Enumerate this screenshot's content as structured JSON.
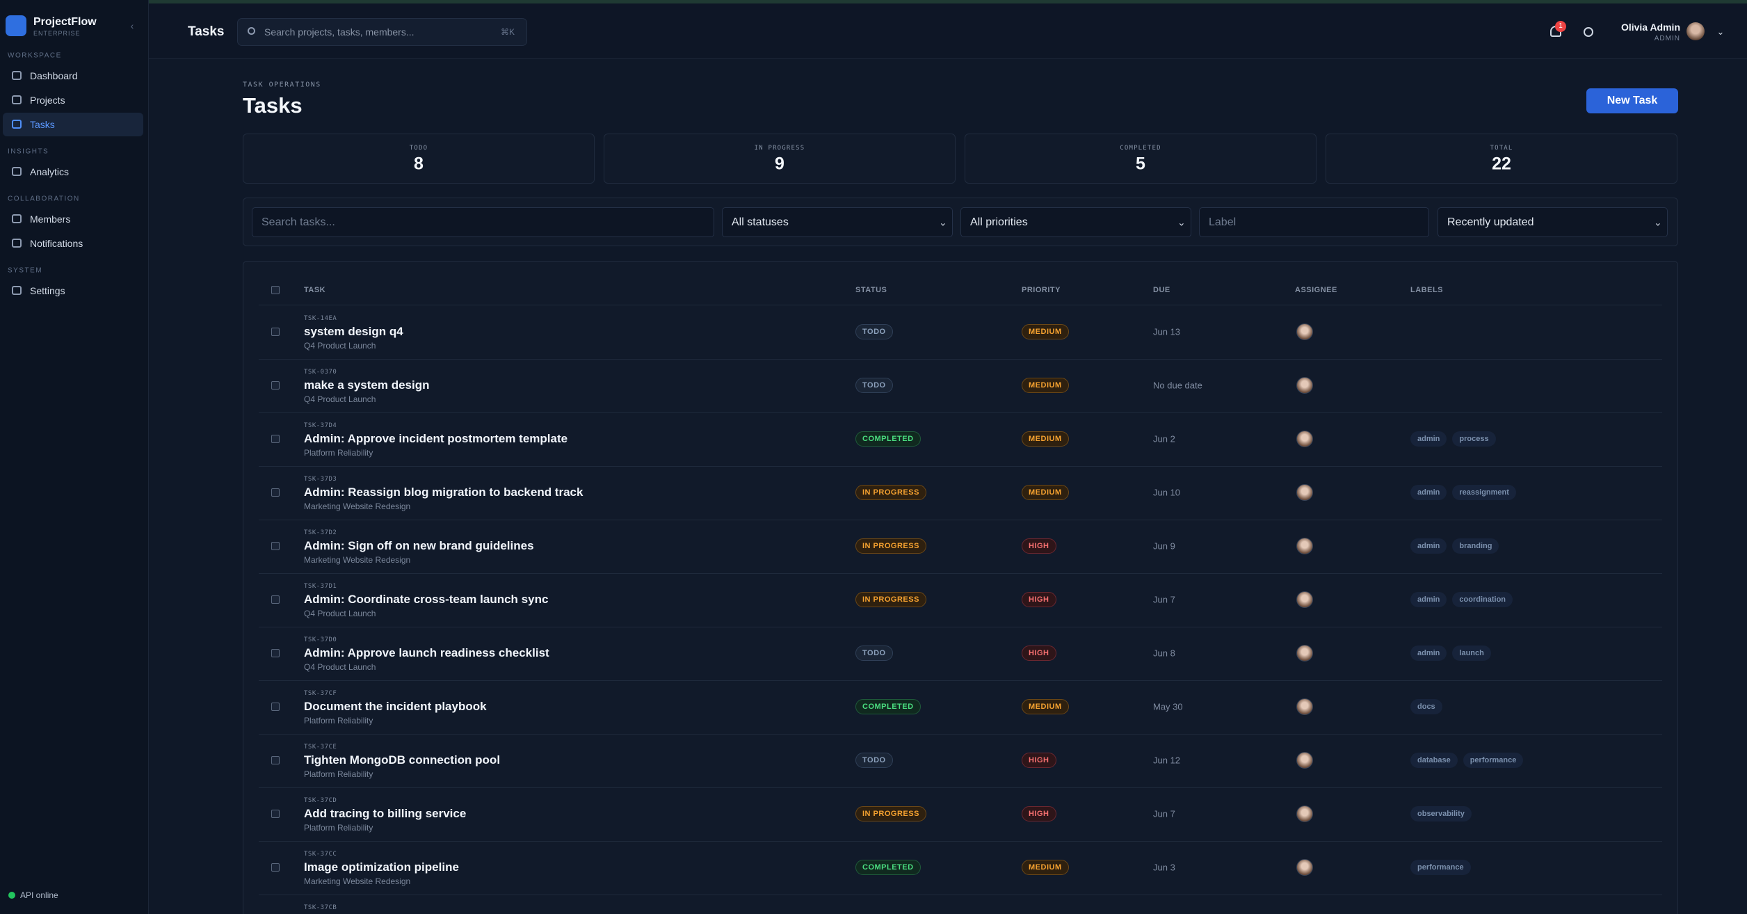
{
  "sidebar": {
    "brand": "ProjectFlow",
    "edition": "ENTERPRISE",
    "sections": [
      {
        "title": "WORKSPACE",
        "items": [
          "Dashboard",
          "Projects",
          "Tasks"
        ]
      },
      {
        "title": "INSIGHTS",
        "items": [
          "Analytics"
        ]
      },
      {
        "title": "COLLABORATION",
        "items": [
          "Members",
          "Notifications"
        ]
      },
      {
        "title": "SYSTEM",
        "items": [
          "Settings"
        ]
      }
    ],
    "status": "API online"
  },
  "topbar": {
    "title": "Tasks",
    "search": "Search projects, tasks, members...",
    "shortcut": "⌘K",
    "badge": "1",
    "user": "Olivia Admin",
    "role": "ADMIN"
  },
  "header": {
    "eyebrow": "TASK OPERATIONS",
    "title": "Tasks",
    "button": "New Task"
  },
  "stats": [
    {
      "label": "TODO",
      "value": 8
    },
    {
      "label": "IN PROGRESS",
      "value": 9
    },
    {
      "label": "COMPLETED",
      "value": 5
    },
    {
      "label": "TOTAL",
      "value": 22
    }
  ],
  "filters": {
    "search": "Search tasks...",
    "status": "All statuses",
    "priority": "All priorities",
    "label": "Label",
    "sort": "Recently updated"
  },
  "table": {
    "columns": [
      "TASK",
      "STATUS",
      "PRIORITY",
      "DUE",
      "ASSIGNEE",
      "LABELS"
    ],
    "rows": [
      {
        "id": "TSK-14EA",
        "title": "system design q4",
        "project": "Q4 Product Launch",
        "status": "TODO",
        "priority": "MEDIUM",
        "due": "Jun 13",
        "labels": []
      },
      {
        "id": "TSK-0370",
        "title": "make a system design",
        "project": "Q4 Product Launch",
        "status": "TODO",
        "priority": "MEDIUM",
        "due": "No due date",
        "labels": []
      },
      {
        "id": "TSK-37D4",
        "title": "Admin: Approve incident postmortem template",
        "project": "Platform Reliability",
        "status": "COMPLETED",
        "priority": "MEDIUM",
        "due": "Jun 2",
        "labels": [
          "admin",
          "process"
        ]
      },
      {
        "id": "TSK-37D3",
        "title": "Admin: Reassign blog migration to backend track",
        "project": "Marketing Website Redesign",
        "status": "IN PROGRESS",
        "priority": "MEDIUM",
        "due": "Jun 10",
        "labels": [
          "admin",
          "reassignment"
        ]
      },
      {
        "id": "TSK-37D2",
        "title": "Admin: Sign off on new brand guidelines",
        "project": "Marketing Website Redesign",
        "status": "IN PROGRESS",
        "priority": "HIGH",
        "due": "Jun 9",
        "labels": [
          "admin",
          "branding"
        ]
      },
      {
        "id": "TSK-37D1",
        "title": "Admin: Coordinate cross-team launch sync",
        "project": "Q4 Product Launch",
        "status": "IN PROGRESS",
        "priority": "HIGH",
        "due": "Jun 7",
        "labels": [
          "admin",
          "coordination"
        ]
      },
      {
        "id": "TSK-37D0",
        "title": "Admin: Approve launch readiness checklist",
        "project": "Q4 Product Launch",
        "status": "TODO",
        "priority": "HIGH",
        "due": "Jun 8",
        "labels": [
          "admin",
          "launch"
        ]
      },
      {
        "id": "TSK-37CF",
        "title": "Document the incident playbook",
        "project": "Platform Reliability",
        "status": "COMPLETED",
        "priority": "MEDIUM",
        "due": "May 30",
        "labels": [
          "docs"
        ]
      },
      {
        "id": "TSK-37CE",
        "title": "Tighten MongoDB connection pool",
        "project": "Platform Reliability",
        "status": "TODO",
        "priority": "HIGH",
        "due": "Jun 12",
        "labels": [
          "database",
          "performance"
        ]
      },
      {
        "id": "TSK-37CD",
        "title": "Add tracing to billing service",
        "project": "Platform Reliability",
        "status": "IN PROGRESS",
        "priority": "HIGH",
        "due": "Jun 7",
        "labels": [
          "observability"
        ]
      },
      {
        "id": "TSK-37CC",
        "title": "Image optimization pipeline",
        "project": "Marketing Website Redesign",
        "status": "COMPLETED",
        "priority": "MEDIUM",
        "due": "Jun 3",
        "labels": [
          "performance"
        ]
      },
      {
        "id": "TSK-37CB"
      }
    ]
  }
}
